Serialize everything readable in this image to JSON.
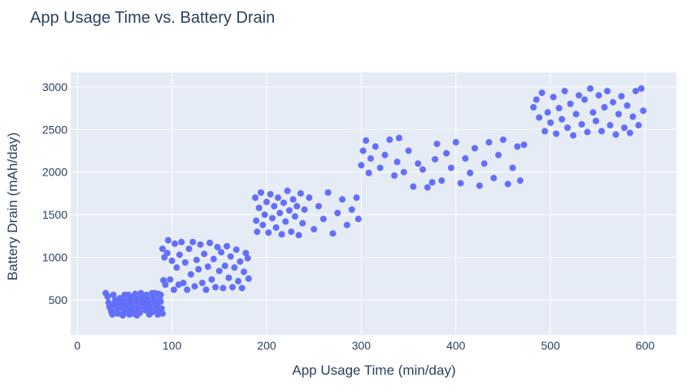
{
  "chart_data": {
    "type": "scatter",
    "title": "App Usage Time vs. Battery Drain",
    "xlabel": "App Usage Time (min/day)",
    "ylabel": "Battery Drain (mAh/day)",
    "xlim": [
      -7,
      633
    ],
    "ylim": [
      90,
      3170
    ],
    "xticks": [
      0,
      100,
      200,
      300,
      400,
      500,
      600
    ],
    "yticks": [
      500,
      1000,
      1500,
      2000,
      2500,
      3000
    ],
    "grid": true,
    "legend": "none",
    "colors": {
      "marker": "#636efa",
      "plot_bg": "#e5ecf6",
      "grid": "#ffffff",
      "text": "#2a3f5f"
    },
    "series": [
      {
        "points": [
          [
            30,
            580
          ],
          [
            32,
            540
          ],
          [
            33,
            470
          ],
          [
            34,
            420
          ],
          [
            36,
            360
          ],
          [
            37,
            330
          ],
          [
            38,
            560
          ],
          [
            40,
            500
          ],
          [
            41,
            450
          ],
          [
            42,
            390
          ],
          [
            43,
            340
          ],
          [
            45,
            520
          ],
          [
            46,
            470
          ],
          [
            47,
            410
          ],
          [
            48,
            320
          ],
          [
            50,
            560
          ],
          [
            51,
            490
          ],
          [
            52,
            440
          ],
          [
            53,
            380
          ],
          [
            55,
            330
          ],
          [
            56,
            500
          ],
          [
            57,
            460
          ],
          [
            58,
            420
          ],
          [
            59,
            370
          ],
          [
            60,
            340
          ],
          [
            61,
            570
          ],
          [
            62,
            520
          ],
          [
            63,
            480
          ],
          [
            64,
            430
          ],
          [
            65,
            390
          ],
          [
            66,
            350
          ],
          [
            67,
            580
          ],
          [
            68,
            540
          ],
          [
            69,
            500
          ],
          [
            70,
            460
          ],
          [
            71,
            420
          ],
          [
            72,
            380
          ],
          [
            73,
            560
          ],
          [
            74,
            510
          ],
          [
            75,
            470
          ],
          [
            76,
            430
          ],
          [
            77,
            390
          ],
          [
            78,
            350
          ],
          [
            79,
            580
          ],
          [
            80,
            530
          ],
          [
            81,
            490
          ],
          [
            82,
            450
          ],
          [
            83,
            410
          ],
          [
            84,
            360
          ],
          [
            85,
            330
          ],
          [
            86,
            570
          ],
          [
            87,
            520
          ],
          [
            88,
            480
          ],
          [
            89,
            400
          ],
          [
            90,
            340
          ],
          [
            35,
            400
          ],
          [
            44,
            480
          ],
          [
            54,
            560
          ],
          [
            49,
            350
          ],
          [
            58,
            530
          ],
          [
            63,
            320
          ],
          [
            70,
            550
          ],
          [
            76,
            330
          ],
          [
            82,
            580
          ],
          [
            88,
            560
          ],
          [
            39,
            450
          ],
          [
            51,
            420
          ],
          [
            66,
            460
          ],
          [
            73,
            460
          ],
          [
            85,
            460
          ],
          [
            90,
            1100
          ],
          [
            91,
            730
          ],
          [
            92,
            1000
          ],
          [
            93,
            680
          ],
          [
            95,
            1050
          ],
          [
            96,
            1200
          ],
          [
            98,
            740
          ],
          [
            100,
            960
          ],
          [
            102,
            620
          ],
          [
            103,
            1160
          ],
          [
            105,
            880
          ],
          [
            107,
            680
          ],
          [
            108,
            1030
          ],
          [
            110,
            1180
          ],
          [
            112,
            700
          ],
          [
            114,
            940
          ],
          [
            116,
            620
          ],
          [
            118,
            1100
          ],
          [
            120,
            800
          ],
          [
            122,
            1180
          ],
          [
            124,
            660
          ],
          [
            126,
            970
          ],
          [
            128,
            860
          ],
          [
            130,
            1150
          ],
          [
            132,
            700
          ],
          [
            134,
            1040
          ],
          [
            136,
            620
          ],
          [
            138,
            890
          ],
          [
            140,
            1170
          ],
          [
            142,
            740
          ],
          [
            144,
            980
          ],
          [
            146,
            650
          ],
          [
            148,
            1120
          ],
          [
            150,
            840
          ],
          [
            152,
            1060
          ],
          [
            154,
            640
          ],
          [
            156,
            900
          ],
          [
            158,
            1130
          ],
          [
            160,
            760
          ],
          [
            162,
            1010
          ],
          [
            164,
            650
          ],
          [
            166,
            880
          ],
          [
            168,
            1090
          ],
          [
            170,
            720
          ],
          [
            172,
            950
          ],
          [
            174,
            640
          ],
          [
            176,
            830
          ],
          [
            178,
            1050
          ],
          [
            180,
            990
          ],
          [
            181,
            750
          ],
          [
            188,
            1700
          ],
          [
            189,
            1430
          ],
          [
            190,
            1300
          ],
          [
            192,
            1580
          ],
          [
            194,
            1760
          ],
          [
            196,
            1380
          ],
          [
            198,
            1500
          ],
          [
            200,
            1650
          ],
          [
            202,
            1290
          ],
          [
            204,
            1740
          ],
          [
            206,
            1460
          ],
          [
            208,
            1600
          ],
          [
            210,
            1350
          ],
          [
            212,
            1700
          ],
          [
            214,
            1520
          ],
          [
            216,
            1270
          ],
          [
            218,
            1640
          ],
          [
            220,
            1420
          ],
          [
            222,
            1780
          ],
          [
            224,
            1550
          ],
          [
            226,
            1300
          ],
          [
            228,
            1680
          ],
          [
            230,
            1480
          ],
          [
            232,
            1600
          ],
          [
            234,
            1260
          ],
          [
            236,
            1750
          ],
          [
            238,
            1400
          ],
          [
            240,
            1560
          ],
          [
            245,
            1700
          ],
          [
            250,
            1330
          ],
          [
            255,
            1600
          ],
          [
            260,
            1450
          ],
          [
            265,
            1760
          ],
          [
            270,
            1280
          ],
          [
            275,
            1520
          ],
          [
            280,
            1680
          ],
          [
            285,
            1380
          ],
          [
            290,
            1560
          ],
          [
            295,
            1700
          ],
          [
            297,
            1450
          ],
          [
            300,
            2080
          ],
          [
            302,
            2250
          ],
          [
            305,
            2370
          ],
          [
            308,
            1990
          ],
          [
            310,
            2160
          ],
          [
            315,
            2300
          ],
          [
            320,
            2050
          ],
          [
            325,
            2200
          ],
          [
            330,
            2380
          ],
          [
            335,
            1960
          ],
          [
            338,
            2120
          ],
          [
            340,
            2400
          ],
          [
            345,
            2000
          ],
          [
            350,
            2250
          ],
          [
            355,
            1830
          ],
          [
            360,
            2100
          ],
          [
            365,
            2030
          ],
          [
            370,
            1820
          ],
          [
            375,
            1880
          ],
          [
            378,
            2150
          ],
          [
            380,
            2330
          ],
          [
            385,
            1900
          ],
          [
            390,
            2220
          ],
          [
            395,
            2050
          ],
          [
            400,
            2350
          ],
          [
            405,
            1870
          ],
          [
            410,
            2160
          ],
          [
            415,
            1990
          ],
          [
            420,
            2280
          ],
          [
            425,
            1840
          ],
          [
            430,
            2100
          ],
          [
            435,
            2350
          ],
          [
            440,
            1930
          ],
          [
            445,
            2200
          ],
          [
            450,
            2380
          ],
          [
            455,
            1860
          ],
          [
            460,
            2050
          ],
          [
            465,
            2300
          ],
          [
            468,
            1900
          ],
          [
            472,
            2320
          ],
          [
            482,
            2760
          ],
          [
            485,
            2850
          ],
          [
            488,
            2640
          ],
          [
            491,
            2930
          ],
          [
            494,
            2480
          ],
          [
            497,
            2700
          ],
          [
            500,
            2580
          ],
          [
            503,
            2880
          ],
          [
            506,
            2450
          ],
          [
            509,
            2750
          ],
          [
            512,
            2620
          ],
          [
            515,
            2950
          ],
          [
            518,
            2520
          ],
          [
            521,
            2800
          ],
          [
            524,
            2430
          ],
          [
            527,
            2680
          ],
          [
            530,
            2900
          ],
          [
            533,
            2560
          ],
          [
            536,
            2850
          ],
          [
            539,
            2470
          ],
          [
            542,
            2980
          ],
          [
            545,
            2700
          ],
          [
            548,
            2600
          ],
          [
            551,
            2900
          ],
          [
            554,
            2480
          ],
          [
            557,
            2760
          ],
          [
            560,
            2950
          ],
          [
            563,
            2550
          ],
          [
            566,
            2820
          ],
          [
            569,
            2440
          ],
          [
            572,
            2680
          ],
          [
            575,
            2890
          ],
          [
            578,
            2520
          ],
          [
            581,
            2780
          ],
          [
            584,
            2460
          ],
          [
            587,
            2650
          ],
          [
            590,
            2950
          ],
          [
            593,
            2550
          ],
          [
            596,
            2980
          ],
          [
            598,
            2720
          ]
        ]
      }
    ]
  }
}
